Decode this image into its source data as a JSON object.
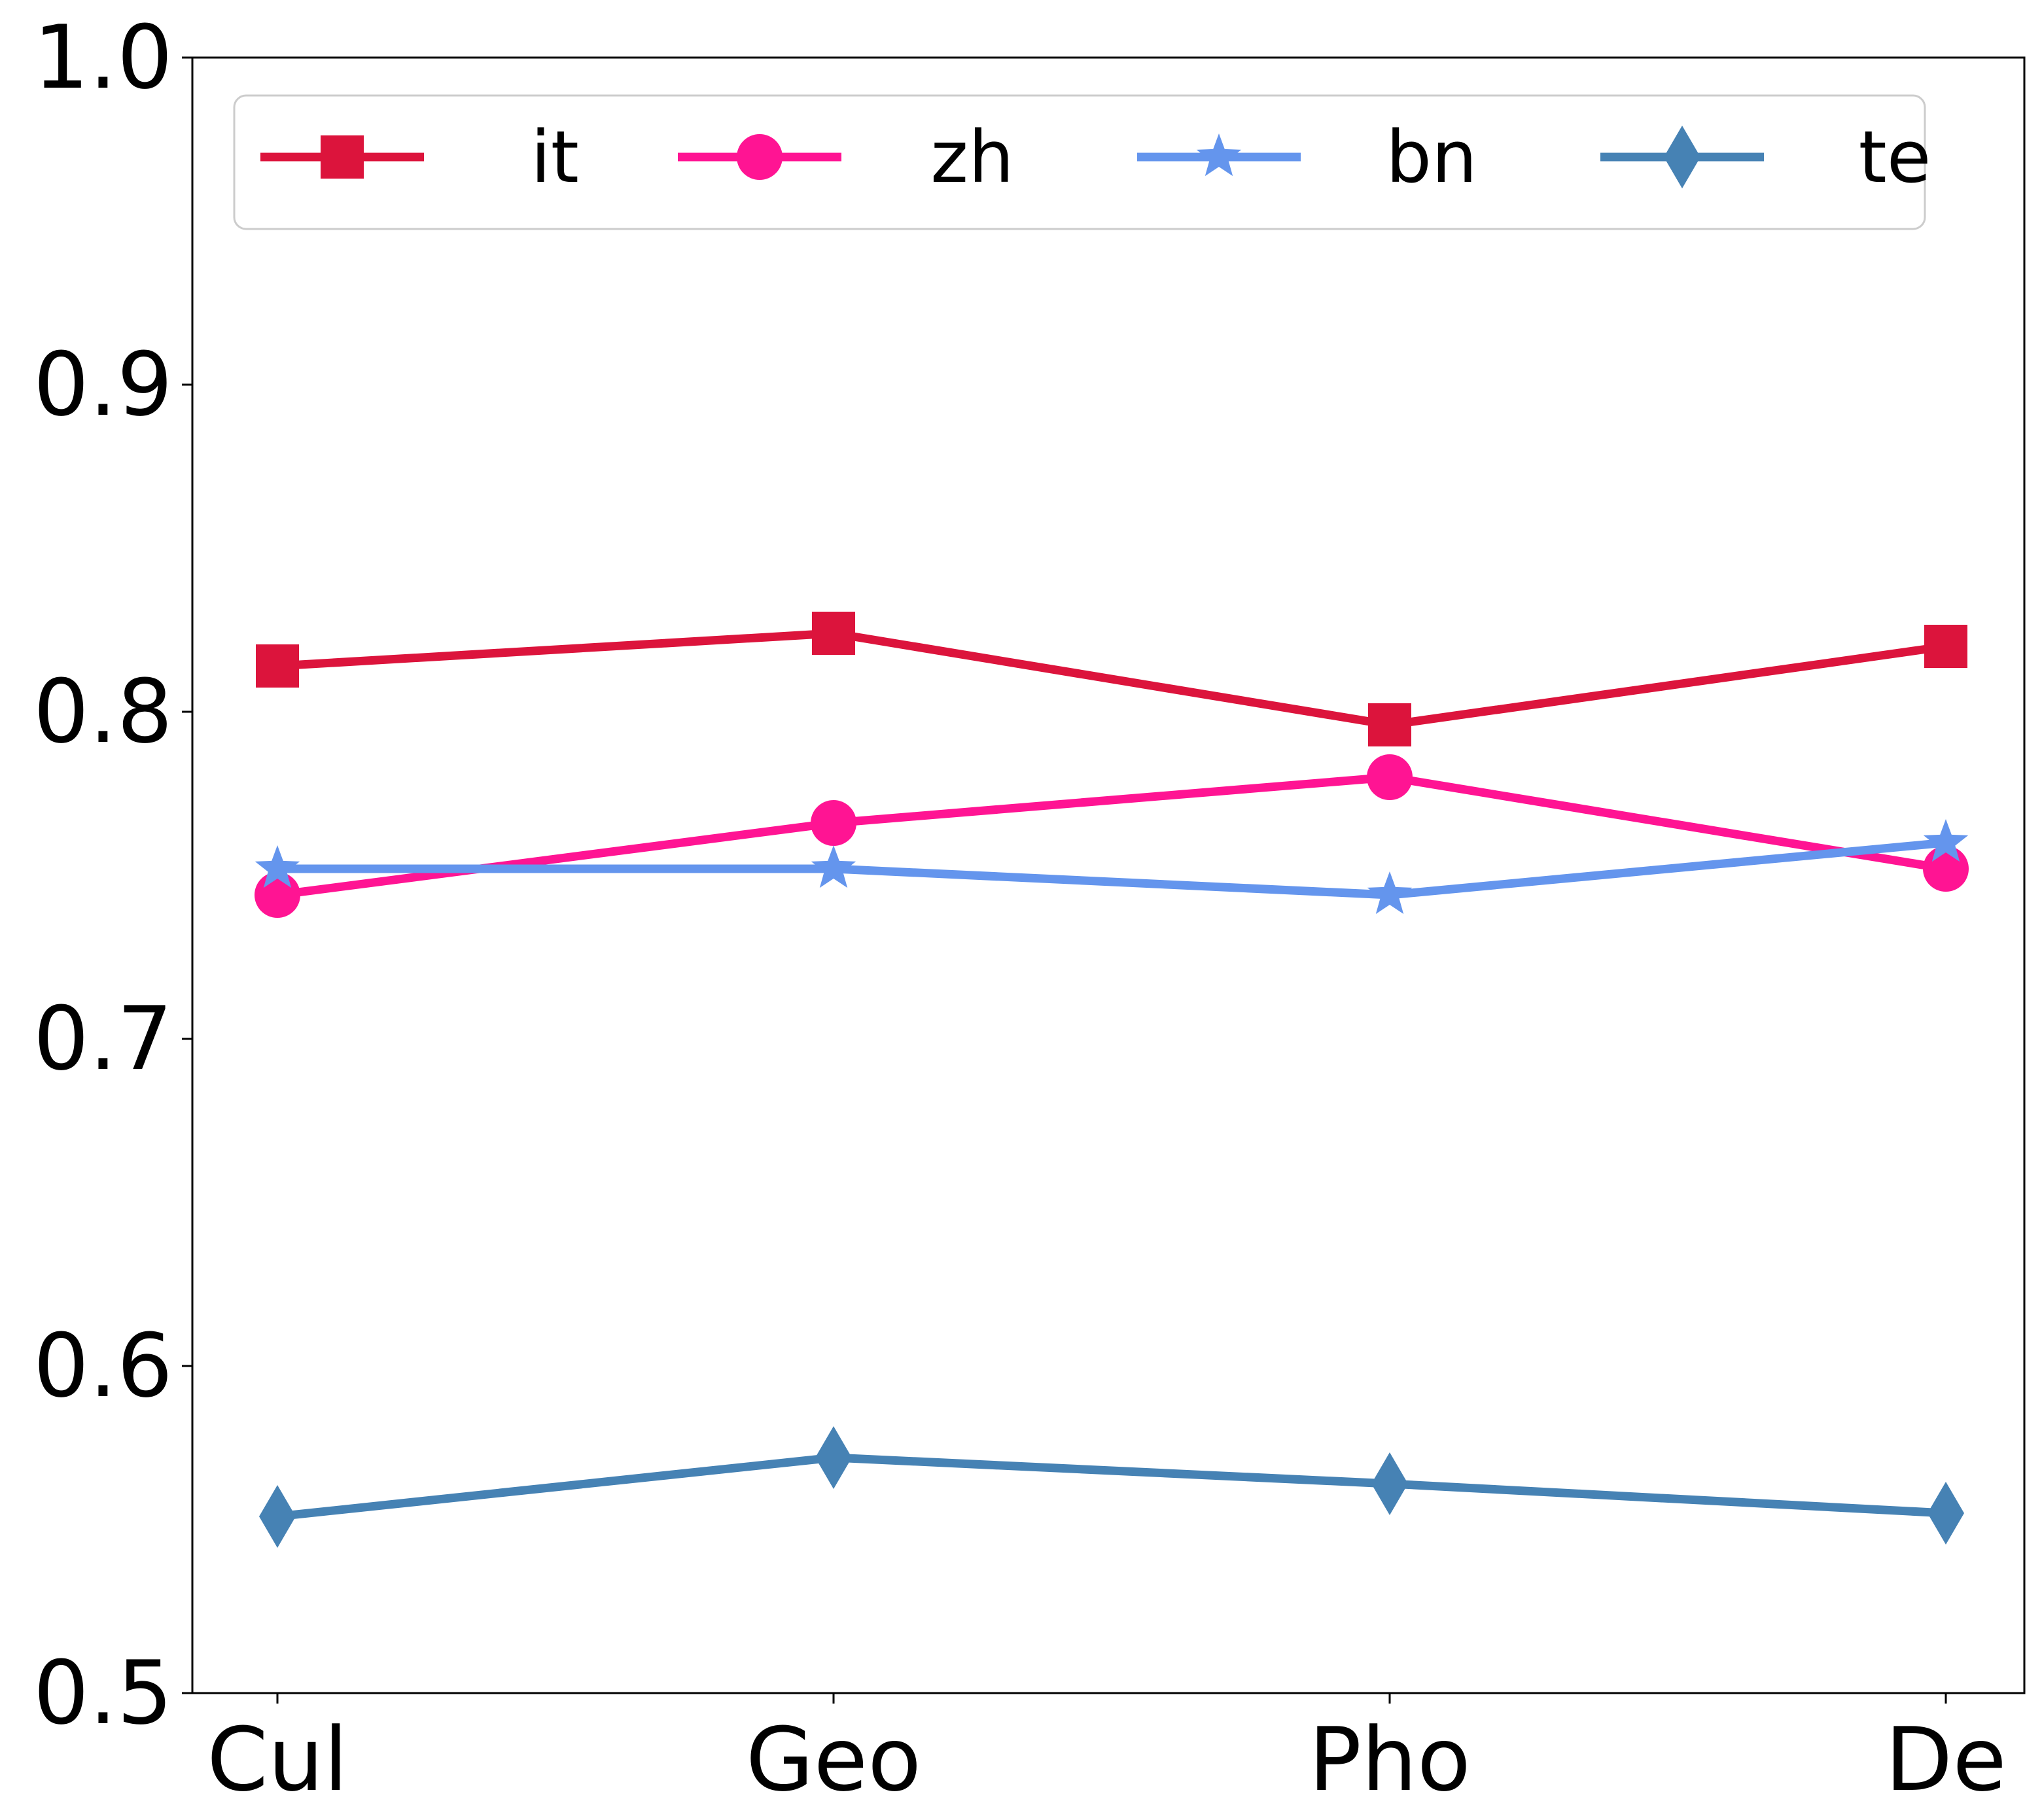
{
  "chart_data": {
    "type": "line",
    "title": "",
    "xlabel": "",
    "ylabel": "",
    "categories": [
      "Cul",
      "Geo",
      "Pho",
      "De"
    ],
    "ylim": [
      0.5,
      1.0
    ],
    "yticks": [
      "0.5",
      "0.6",
      "0.7",
      "0.8",
      "0.9",
      "1.0"
    ],
    "grid": false,
    "legend_position": "top, horizontal, inside plot",
    "series": [
      {
        "name": "it",
        "color": "#DC143C",
        "marker": "square",
        "values": [
          0.814,
          0.824,
          0.796,
          0.82
        ]
      },
      {
        "name": "zh",
        "color": "#FF1493",
        "marker": "circle",
        "values": [
          0.744,
          0.766,
          0.78,
          0.752
        ]
      },
      {
        "name": "bn",
        "color": "#6495ED",
        "marker": "star",
        "values": [
          0.752,
          0.752,
          0.744,
          0.76
        ]
      },
      {
        "name": "te",
        "color": "#4682B4",
        "marker": "diamond",
        "values": [
          0.554,
          0.572,
          0.564,
          0.555
        ]
      }
    ]
  }
}
